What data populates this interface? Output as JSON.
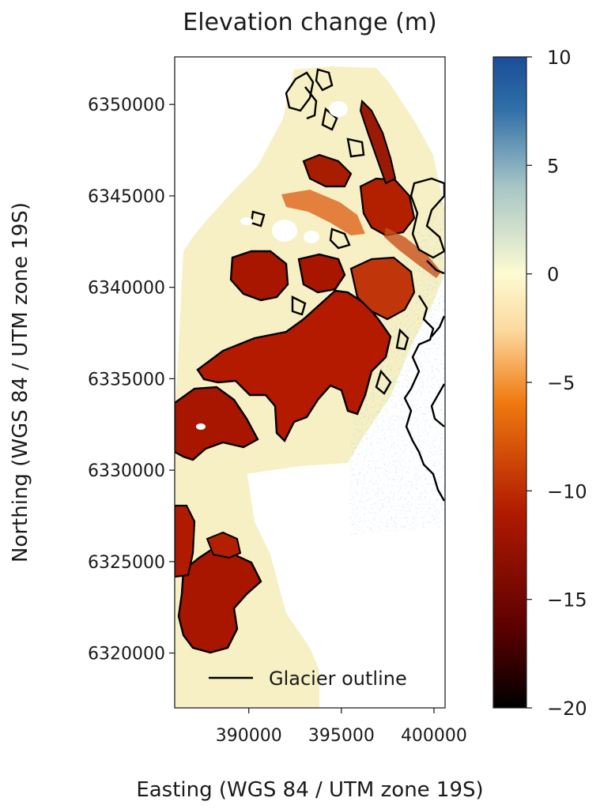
{
  "chart_data": {
    "type": "heatmap",
    "title": "Elevation change (m)",
    "xlabel": "Easting (WGS 84 / UTM zone 19S)",
    "ylabel": "Northing (WGS 84 / UTM zone 19S)",
    "xlim": [
      386000,
      400600
    ],
    "ylim": [
      6317000,
      6352600
    ],
    "x_ticks": [
      390000,
      395000,
      400000
    ],
    "x_tick_labels": [
      "390000",
      "395000",
      "400000"
    ],
    "y_ticks": [
      6320000,
      6325000,
      6330000,
      6335000,
      6340000,
      6345000,
      6350000
    ],
    "y_tick_labels": [
      "6320000",
      "6325000",
      "6330000",
      "6335000",
      "6340000",
      "6345000",
      "6350000"
    ],
    "colorbar": {
      "range": [
        -20,
        10
      ],
      "ticks": [
        10,
        5,
        0,
        -5,
        -10,
        -15,
        -20
      ],
      "tick_labels": [
        "10",
        "5",
        "0",
        "−5",
        "−10",
        "−15",
        "−20"
      ],
      "colors": [
        "#000000",
        "#5a0000",
        "#b01a00",
        "#f07a10",
        "#fcd9a0",
        "#fdfbd2",
        "#a7c6c6",
        "#2f6fa8",
        "#1a4e98"
      ]
    },
    "legend": {
      "entries": [
        "Glacier outline"
      ],
      "placement": "lower-right"
    },
    "grid": false
  }
}
